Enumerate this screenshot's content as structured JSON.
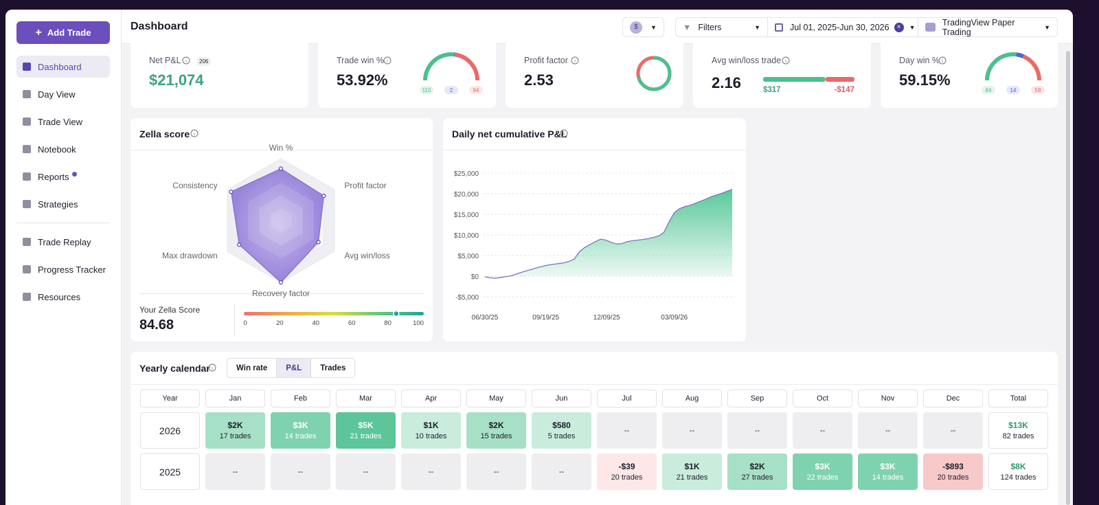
{
  "sidebar": {
    "add_trade": "Add Trade",
    "nav": [
      "Dashboard",
      "Day View",
      "Trade View",
      "Notebook",
      "Reports",
      "Strategies"
    ],
    "nav_secondary": [
      "Trade Replay",
      "Progress Tracker",
      "Resources"
    ]
  },
  "header": {
    "title": "Dashboard",
    "currency": "$",
    "filters": "Filters",
    "date_range": "Jul 01, 2025-Jun 30, 2026",
    "account": "TradingView Paper Trading"
  },
  "stats": {
    "net_pnl": {
      "label": "Net P&L",
      "trades": 206,
      "value": "$21,074"
    },
    "trade_win": {
      "label": "Trade win %",
      "value": "53.92%",
      "win": 110,
      "breakeven": 2,
      "loss": 94
    },
    "profit_factor": {
      "label": "Profit factor",
      "value": 2.53
    },
    "avg_win_loss": {
      "label": "Avg win/loss trade",
      "value": 2.16,
      "avg_win": {
        "value": 317,
        "label": "$317"
      },
      "avg_loss": {
        "value": -147,
        "label": "-$147"
      }
    },
    "day_win": {
      "label": "Day win %",
      "value": "59.15%",
      "win": 84,
      "breakeven": 14,
      "loss": 58
    }
  },
  "zella": {
    "title": "Zella score",
    "rlim": [
      0,
      100
    ],
    "axes": [
      {
        "label": "Win %",
        "value": 84
      },
      {
        "label": "Profit factor",
        "value": 80
      },
      {
        "label": "Avg win/loss",
        "value": 70
      },
      {
        "label": "Recovery factor",
        "value": 100
      },
      {
        "label": "Max drawdown",
        "value": 78
      },
      {
        "label": "Consistency",
        "value": 93
      }
    ],
    "score_label": "Your Zella Score",
    "score": 84.68,
    "scale_ticks": [
      0,
      20,
      40,
      60,
      80,
      100
    ]
  },
  "chart_data": {
    "type": "line",
    "title": "Daily net cumulative P&L",
    "color": "#7b74c0",
    "grid": true,
    "x": [
      "06/30/25",
      "07/07/25",
      "07/14/25",
      "07/21/25",
      "07/28/25",
      "08/04/25",
      "08/11/25",
      "08/18/25",
      "08/25/25",
      "09/01/25",
      "09/08/25",
      "09/15/25",
      "09/22/25",
      "09/29/25",
      "10/06/25",
      "10/13/25",
      "10/20/25",
      "10/27/25",
      "11/03/25",
      "11/10/25",
      "11/17/25",
      "11/24/25",
      "12/01/25",
      "12/08/25",
      "12/15/25",
      "12/22/25",
      "12/29/25",
      "01/05/26",
      "01/12/26",
      "01/19/26",
      "01/26/26",
      "02/02/26",
      "02/09/26",
      "02/16/26",
      "02/23/26",
      "03/02/26",
      "03/09/26",
      "03/16/26",
      "03/23/26",
      "03/30/26",
      "04/06/26",
      "04/13/26",
      "04/20/26",
      "04/27/26",
      "05/04/26",
      "05/11/26",
      "05/18/26",
      "05/25/26"
    ],
    "values": [
      -150,
      -400,
      -500,
      -300,
      -100,
      100,
      550,
      950,
      1350,
      1700,
      2100,
      2400,
      2700,
      2900,
      3050,
      3250,
      3600,
      4200,
      6000,
      7000,
      7700,
      8400,
      9000,
      8750,
      8200,
      7800,
      7900,
      8350,
      8600,
      8750,
      8900,
      9100,
      9400,
      9750,
      10600,
      13200,
      15400,
      16400,
      16900,
      17200,
      17700,
      18200,
      18700,
      19300,
      19700,
      20100,
      20600,
      21074
    ],
    "xlim": [
      "06/30/25",
      "05/25/26"
    ],
    "xticks": [
      "06/30/25",
      "09/19/25",
      "12/09/25",
      "03/09/26"
    ],
    "ylim": [
      -5000,
      25000
    ],
    "yticks": [
      {
        "value": -5000,
        "label": "-$5,000"
      },
      {
        "value": 0,
        "label": "$0"
      },
      {
        "value": 5000,
        "label": "$5,000"
      },
      {
        "value": 10000,
        "label": "$10,000"
      },
      {
        "value": 15000,
        "label": "$15,000"
      },
      {
        "value": 20000,
        "label": "$20,000"
      },
      {
        "value": 25000,
        "label": "$25,000"
      }
    ]
  },
  "calendar": {
    "title": "Yearly calendar",
    "tabs": [
      "Win rate",
      "P&L",
      "Trades"
    ],
    "columns": [
      "Year",
      "Jan",
      "Feb",
      "Mar",
      "Apr",
      "May",
      "Jun",
      "Jul",
      "Aug",
      "Sep",
      "Oct",
      "Nov",
      "Dec",
      "Total"
    ],
    "rows": [
      {
        "year": "2026",
        "cells": [
          {
            "pnl": {
              "value": 2000,
              "label": "$2K"
            },
            "trades": "17 trades"
          },
          {
            "pnl": {
              "value": 3000,
              "label": "$3K"
            },
            "trades": "14 trades"
          },
          {
            "pnl": {
              "value": 5000,
              "label": "$5K"
            },
            "trades": "21 trades"
          },
          {
            "pnl": {
              "value": 1000,
              "label": "$1K"
            },
            "trades": "10 trades"
          },
          {
            "pnl": {
              "value": 2000,
              "label": "$2K"
            },
            "trades": "15 trades"
          },
          {
            "pnl": {
              "value": 580,
              "label": "$580"
            },
            "trades": "5 trades"
          },
          "--",
          "--",
          "--",
          "--",
          "--",
          "--"
        ],
        "total": {
          "pnl": {
            "value": 13000,
            "label": "$13K"
          },
          "trades": "82 trades"
        }
      },
      {
        "year": "2025",
        "cells": [
          "--",
          "--",
          "--",
          "--",
          "--",
          "--",
          {
            "pnl": {
              "value": -39,
              "label": "-$39"
            },
            "trades": "20 trades"
          },
          {
            "pnl": {
              "value": 1000,
              "label": "$1K"
            },
            "trades": "21 trades"
          },
          {
            "pnl": {
              "value": 2000,
              "label": "$2K"
            },
            "trades": "27 trades"
          },
          {
            "pnl": {
              "value": 3000,
              "label": "$3K"
            },
            "trades": "22 trades"
          },
          {
            "pnl": {
              "value": 3000,
              "label": "$3K"
            },
            "trades": "14 trades"
          },
          {
            "pnl": {
              "value": -893,
              "label": "-$893"
            },
            "trades": "20 trades"
          }
        ],
        "total": {
          "pnl": {
            "value": 8000,
            "label": "$8K"
          },
          "trades": "124 trades"
        }
      }
    ]
  }
}
